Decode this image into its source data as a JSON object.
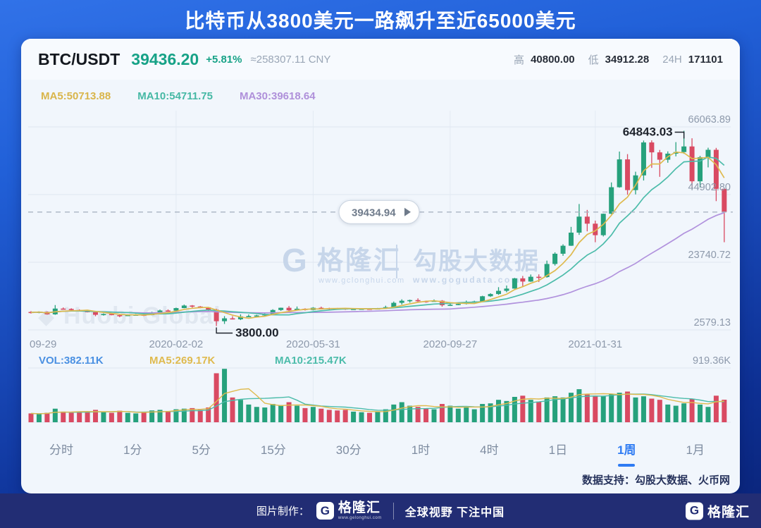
{
  "banner": {
    "title": "比特币从3800美元一路飙升至近65000美元"
  },
  "header": {
    "pair": "BTC/USDT",
    "price": "39436.20",
    "change": "+5.81%",
    "cny": "≈258307.11 CNY",
    "high_label": "高",
    "high": "40800.00",
    "low_label": "低",
    "low": "34912.28",
    "range_label": "24H",
    "range_value": "171101"
  },
  "legend": {
    "ma5": "MA5:50713.88",
    "ma10": "MA10:54711.75",
    "ma30": "MA30:39618.64"
  },
  "vol_legend": {
    "vol": "VOL:382.11K",
    "ma5": "MA5:269.17K",
    "ma10": "MA10:215.47K",
    "axis": "919.36K"
  },
  "price_bubble": {
    "text": "39434.94"
  },
  "watermarks": {
    "center_brand": "格隆汇",
    "center_brand_url": "www.gclonghui.com",
    "center_data": "勾股大数据",
    "center_data_url": "www.gogudata.com",
    "exchange": "Huobi Global"
  },
  "tabs": [
    {
      "label": "分时"
    },
    {
      "label": "1分"
    },
    {
      "label": "5分"
    },
    {
      "label": "15分"
    },
    {
      "label": "30分"
    },
    {
      "label": "1时"
    },
    {
      "label": "4时"
    },
    {
      "label": "1日"
    },
    {
      "label": "1周"
    },
    {
      "label": "1月"
    }
  ],
  "active_tab_index": 8,
  "footer": {
    "data_support": "数据支持：勾股大数据、火币网"
  },
  "bottombar": {
    "credit_label": "图片制作：",
    "logo_letter": "G",
    "brand": "格隆汇",
    "brand_url": "www.gelonghui.com",
    "slogan": "全球视野 下注中国"
  },
  "colors": {
    "up": "#26a17c",
    "down": "#d94a62",
    "ma5": "#dfba4e",
    "ma10": "#4cbcaa",
    "ma30": "#b192dd",
    "grid_h": "#dfe7f1",
    "grid_v": "#e3eaf3",
    "axis_text": "#8d99ab",
    "vol_blue": "#4a90e2",
    "annotation": "#1e232c",
    "dashed": "#a9b4c2",
    "bubble_border": "#ccd5e1",
    "bubble_text": "#6e7a8a",
    "watermark": "#c5d5ea",
    "watermark_faint": "#d3dce8"
  },
  "chart_data": {
    "type": "candlestick+volume",
    "timeframe": "1周",
    "price_gridlines": [
      66063.89,
      44902.8,
      23740.72,
      2579.13
    ],
    "price_gridline_labels": [
      "66063.89",
      "44902.80",
      "23740.72",
      "2579.13"
    ],
    "current_price": 39434.94,
    "x_ticks": [
      {
        "index": 0,
        "label": "09-29"
      },
      {
        "index": 18,
        "label": "2020-02-02"
      },
      {
        "index": 35,
        "label": "2020-05-31"
      },
      {
        "index": 52,
        "label": "2020-09-27"
      },
      {
        "index": 70,
        "label": "2021-01-31"
      }
    ],
    "annotations": [
      {
        "index": 23,
        "type": "low",
        "value": 3800.0,
        "label": "3800.00"
      },
      {
        "index": 81,
        "type": "high",
        "value": 64843.03,
        "label": "64843.03"
      }
    ],
    "volume_gridline_value": 919.36,
    "volume_axis_label": "919.36K",
    "candles": [
      [
        8200,
        8450,
        7700,
        8050
      ],
      [
        8050,
        8350,
        7800,
        8250
      ],
      [
        8250,
        8350,
        7350,
        7450
      ],
      [
        7450,
        10350,
        7300,
        9250
      ],
      [
        9250,
        9600,
        8950,
        9150
      ],
      [
        9150,
        9350,
        8650,
        8800
      ],
      [
        8800,
        9000,
        8350,
        8500
      ],
      [
        8500,
        8750,
        8050,
        8100
      ],
      [
        8100,
        8150,
        6850,
        7300
      ],
      [
        7300,
        7750,
        7050,
        7550
      ],
      [
        7550,
        7700,
        7150,
        7200
      ],
      [
        7200,
        7300,
        6550,
        7100
      ],
      [
        7100,
        7450,
        6950,
        7250
      ],
      [
        7250,
        7550,
        7100,
        7350
      ],
      [
        7350,
        7500,
        6900,
        7200
      ],
      [
        7200,
        8250,
        7150,
        8100
      ],
      [
        8100,
        8950,
        8000,
        8650
      ],
      [
        8650,
        9000,
        8250,
        8600
      ],
      [
        8600,
        9550,
        8300,
        9400
      ],
      [
        9400,
        10500,
        9350,
        10200
      ],
      [
        10200,
        10350,
        9550,
        9900
      ],
      [
        9900,
        10050,
        9350,
        9650
      ],
      [
        9650,
        9750,
        8400,
        8900
      ],
      [
        8900,
        9200,
        3800,
        5300
      ],
      [
        5300,
        6900,
        4450,
        6200
      ],
      [
        6200,
        6870,
        5850,
        5900
      ],
      [
        5900,
        7450,
        5650,
        6800
      ],
      [
        6800,
        7400,
        6550,
        6900
      ],
      [
        6900,
        7300,
        6750,
        7100
      ],
      [
        7100,
        7750,
        6800,
        7550
      ],
      [
        7550,
        9050,
        7500,
        8800
      ],
      [
        8800,
        9550,
        8550,
        9500
      ],
      [
        9500,
        10050,
        8100,
        8700
      ],
      [
        8700,
        9900,
        8600,
        9200
      ],
      [
        9200,
        9350,
        8650,
        8800
      ],
      [
        8800,
        9700,
        8700,
        9500
      ],
      [
        9500,
        9850,
        9350,
        9400
      ],
      [
        9400,
        9500,
        8900,
        9350
      ],
      [
        9350,
        9450,
        8950,
        9300
      ],
      [
        9300,
        9400,
        8850,
        9100
      ],
      [
        9100,
        9250,
        8950,
        9150
      ],
      [
        9150,
        9350,
        9000,
        9200
      ],
      [
        9200,
        9300,
        9050,
        9150
      ],
      [
        9150,
        9450,
        9000,
        9300
      ],
      [
        9300,
        10150,
        9200,
        9700
      ],
      [
        9700,
        11450,
        9650,
        11050
      ],
      [
        11050,
        12150,
        10500,
        11700
      ],
      [
        11700,
        12050,
        11100,
        11900
      ],
      [
        11900,
        12450,
        11300,
        11600
      ],
      [
        11600,
        11750,
        11100,
        11500
      ],
      [
        11500,
        12100,
        11400,
        11700
      ],
      [
        11700,
        11900,
        9850,
        10300
      ],
      [
        10300,
        11100,
        10150,
        10450
      ],
      [
        10450,
        10950,
        10300,
        10700
      ],
      [
        10700,
        11750,
        10550,
        11300
      ],
      [
        11300,
        11700,
        11200,
        11500
      ],
      [
        11500,
        13250,
        11400,
        13100
      ],
      [
        13100,
        14050,
        12900,
        13800
      ],
      [
        13800,
        15950,
        13550,
        14800
      ],
      [
        14800,
        16450,
        14350,
        15500
      ],
      [
        15500,
        18850,
        15450,
        18700
      ],
      [
        18700,
        19450,
        16250,
        17700
      ],
      [
        17700,
        19900,
        17600,
        19200
      ],
      [
        19200,
        19950,
        17550,
        19100
      ],
      [
        19100,
        24250,
        18900,
        23200
      ],
      [
        23200,
        26850,
        22700,
        26400
      ],
      [
        26400,
        29350,
        25750,
        28900
      ],
      [
        28900,
        34800,
        28850,
        33000
      ],
      [
        33000,
        41950,
        32300,
        38000
      ],
      [
        38000,
        40100,
        33400,
        35800
      ],
      [
        35800,
        36750,
        30000,
        32200
      ],
      [
        32200,
        38950,
        31800,
        38900
      ],
      [
        38900,
        48700,
        38800,
        47200
      ],
      [
        47200,
        58350,
        47050,
        55900
      ],
      [
        55900,
        57550,
        44850,
        46300
      ],
      [
        46300,
        52050,
        44950,
        50900
      ],
      [
        50900,
        61800,
        49300,
        61200
      ],
      [
        61200,
        61850,
        53250,
        58100
      ],
      [
        58100,
        58850,
        50450,
        55800
      ],
      [
        55800,
        58400,
        54850,
        57700
      ],
      [
        57700,
        61300,
        56850,
        58200
      ],
      [
        58200,
        64843.03,
        57650,
        59950
      ],
      [
        59950,
        62500,
        47050,
        49050
      ],
      [
        49050,
        57000,
        47150,
        56600
      ],
      [
        56600,
        59550,
        53400,
        58900
      ],
      [
        58900,
        59500,
        42850,
        46700
      ],
      [
        46700,
        46850,
        30000,
        39434.94
      ]
    ],
    "volumes_k": [
      150,
      140,
      160,
      230,
      180,
      160,
      170,
      175,
      210,
      180,
      160,
      195,
      160,
      150,
      165,
      200,
      210,
      190,
      220,
      230,
      240,
      210,
      250,
      830,
      905,
      420,
      380,
      300,
      260,
      250,
      310,
      290,
      340,
      280,
      240,
      260,
      230,
      210,
      200,
      210,
      180,
      170,
      160,
      180,
      220,
      300,
      340,
      280,
      260,
      230,
      220,
      310,
      280,
      230,
      250,
      220,
      310,
      320,
      380,
      360,
      430,
      450,
      380,
      350,
      420,
      440,
      420,
      500,
      560,
      470,
      450,
      440,
      480,
      500,
      520,
      420,
      440,
      400,
      380,
      300,
      280,
      320,
      400,
      300,
      260,
      450,
      382.11
    ]
  }
}
